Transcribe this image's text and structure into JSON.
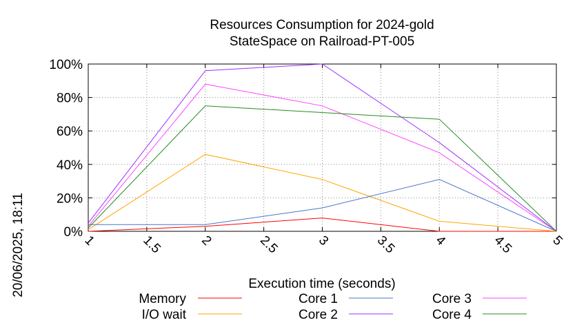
{
  "chart_data": {
    "type": "line",
    "title": "Resources Consumption for 2024-gold",
    "subtitle": "StateSpace on Railroad-PT-005",
    "xlabel": "Execution time (seconds)",
    "ylabel": "",
    "side_label": "20/06/2025, 18:11",
    "xlim": [
      1,
      5
    ],
    "ylim": [
      0,
      100
    ],
    "x_ticks": [
      "1",
      "1.5",
      "2",
      "2.5",
      "3",
      "3.5",
      "4",
      "4.5",
      "5"
    ],
    "y_ticks": [
      "0%",
      "20%",
      "40%",
      "60%",
      "80%",
      "100%"
    ],
    "grid": true,
    "legend_position": "bottom",
    "x": [
      1,
      2,
      3,
      4,
      5
    ],
    "series": [
      {
        "name": "Memory",
        "color": "#ff0000",
        "values": [
          0,
          3,
          8,
          0,
          0
        ]
      },
      {
        "name": "I/O wait",
        "color": "#ffa500",
        "values": [
          1,
          46,
          31,
          6,
          0
        ]
      },
      {
        "name": "Core 1",
        "color": "#4a75c9",
        "values": [
          4,
          4,
          14,
          31,
          0
        ]
      },
      {
        "name": "Core 2",
        "color": "#9b30ff",
        "values": [
          5,
          96,
          100,
          53,
          0
        ]
      },
      {
        "name": "Core 3",
        "color": "#ff44ff",
        "values": [
          3,
          88,
          75,
          47,
          0
        ]
      },
      {
        "name": "Core 4",
        "color": "#228b22",
        "values": [
          2,
          75,
          71,
          67,
          0
        ]
      }
    ]
  }
}
